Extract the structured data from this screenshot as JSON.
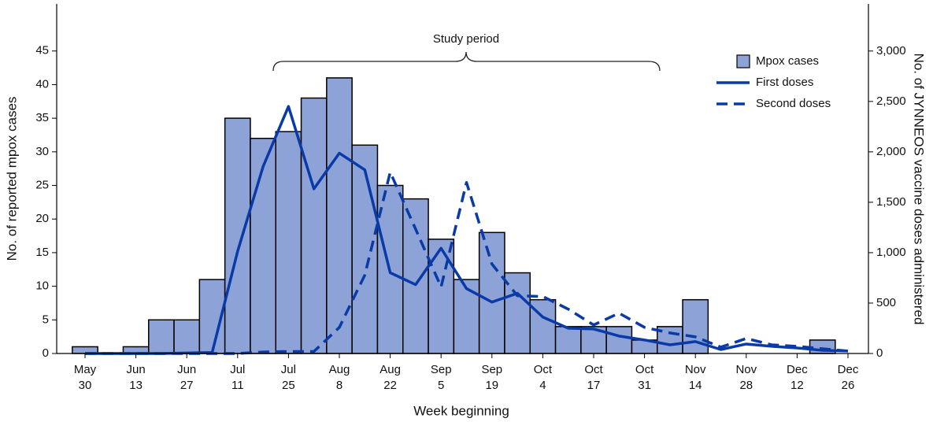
{
  "chart_data": {
    "type": "bar-line",
    "annotation": "Study period",
    "xlabel": "Week beginning",
    "ylabel": "No. of reported mpox cases",
    "y2label": "No. of JYNNEOS vaccine doses administered",
    "categories": [
      "May 30",
      null,
      "Jun 13",
      null,
      "Jun 27",
      null,
      "Jul 11",
      null,
      "Jul 25",
      null,
      "Aug 8",
      null,
      "Aug 22",
      null,
      "Sep 5",
      null,
      "Sep 19",
      null,
      "Oct 4",
      null,
      "Oct 17",
      null,
      "Oct 31",
      null,
      "Nov 14",
      null,
      "Nov 28",
      null,
      "Dec 12",
      null,
      "Dec 26"
    ],
    "ylim": [
      0,
      52
    ],
    "yticks": [
      0,
      5,
      10,
      15,
      20,
      25,
      30,
      35,
      40,
      45
    ],
    "y2lim": [
      0,
      3467
    ],
    "y2ticks": [
      0,
      500,
      {
        "value": 1000,
        "label": "1,000"
      },
      {
        "value": 1500,
        "label": "1,500"
      },
      {
        "value": 2000,
        "label": "2,000"
      },
      {
        "value": 2500,
        "label": "2,500"
      },
      {
        "value": 3000,
        "label": "3,000"
      }
    ],
    "legend": "top-right",
    "series": [
      {
        "name": "Mpox cases",
        "type": "bar",
        "color": "#8da3d8",
        "values": [
          1,
          0,
          1,
          5,
          5,
          11,
          35,
          32,
          33,
          38,
          41,
          31,
          25,
          23,
          17,
          11,
          18,
          12,
          8,
          4,
          4,
          4,
          2,
          4,
          8,
          0,
          0,
          0,
          0,
          2,
          0
        ]
      },
      {
        "name": "First doses",
        "type": "line",
        "axis": "y2",
        "color": "#0a3aa6",
        "dash": false,
        "values": [
          0,
          0,
          0,
          0,
          5,
          10,
          1013,
          1853,
          2450,
          1633,
          1987,
          1822,
          801,
          683,
          1044,
          644,
          510,
          597,
          361,
          251,
          243,
          173,
          134,
          86,
          118,
          39,
          94,
          71,
          55,
          31,
          24
        ]
      },
      {
        "name": "Second doses",
        "type": "line",
        "axis": "y2",
        "color": "#0a3aa6",
        "dash": true,
        "values": [
          0,
          0,
          0,
          0,
          0,
          0,
          0,
          15,
          20,
          20,
          259,
          777,
          1798,
          1233,
          660,
          1696,
          887,
          573,
          565,
          440,
          283,
          400,
          259,
          204,
          165,
          63,
          149,
          86,
          71,
          47,
          24
        ]
      }
    ]
  }
}
